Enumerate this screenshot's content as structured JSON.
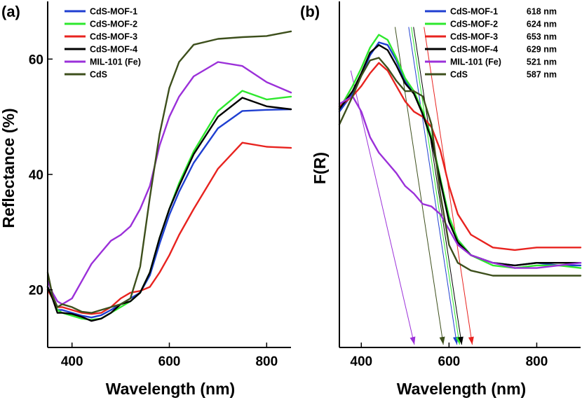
{
  "chart_data": [
    {
      "panel": "(a)",
      "type": "line",
      "xlabel": "Wavelength (nm)",
      "ylabel": "Reflectance (%)",
      "xlim": [
        350,
        850
      ],
      "ylim": [
        10,
        70
      ],
      "xticks": [
        400,
        600,
        800
      ],
      "yticks": [
        20,
        40,
        60
      ],
      "x": [
        350,
        360,
        370,
        380,
        400,
        420,
        440,
        460,
        480,
        500,
        520,
        540,
        560,
        580,
        600,
        620,
        650,
        700,
        750,
        800,
        850
      ],
      "series": [
        {
          "name": "CdS-MOF-1",
          "color": "#1f3fd1",
          "values": [
            20.5,
            18.5,
            16.5,
            16.5,
            16,
            15.5,
            15.2,
            15.6,
            16.5,
            17.5,
            18.5,
            19.5,
            22.5,
            28,
            33,
            37,
            42,
            48,
            51,
            51.2,
            51.3
          ]
        },
        {
          "name": "CdS-MOF-2",
          "color": "#2ee82e",
          "values": [
            20.5,
            18.5,
            16.5,
            16,
            15.5,
            15,
            14.8,
            15,
            16,
            17,
            18,
            19.5,
            23,
            29,
            34,
            38.5,
            44,
            51,
            54.5,
            53,
            53.5
          ]
        },
        {
          "name": "CdS-MOF-3",
          "color": "#e8231f",
          "values": [
            20,
            18.5,
            17,
            17,
            16.5,
            16,
            15.8,
            16,
            17,
            18.5,
            19.5,
            19.8,
            20.5,
            23,
            26,
            29.5,
            34,
            41,
            45.5,
            44.8,
            44.6
          ]
        },
        {
          "name": "CdS-MOF-4",
          "color": "#000000",
          "values": [
            20.5,
            18.5,
            16,
            16,
            15.8,
            15.3,
            14.6,
            15,
            16,
            17.5,
            18,
            19.5,
            23,
            29,
            34,
            38,
            43.5,
            50,
            53.3,
            51.8,
            51.3
          ]
        },
        {
          "name": "MIL-101 (Fe)",
          "color": "#9b30d9",
          "values": [
            21.5,
            19.5,
            18,
            17.5,
            18.5,
            21.5,
            24.5,
            26.5,
            28.5,
            29.5,
            31,
            34,
            38,
            45,
            50,
            53.5,
            57,
            59.5,
            58.8,
            56,
            54.2
          ]
        },
        {
          "name": "CdS",
          "color": "#3d4f1c",
          "values": [
            23,
            19,
            17,
            17.5,
            17,
            16.2,
            16,
            16.5,
            17,
            17.5,
            18.5,
            24,
            36,
            47,
            55,
            59.5,
            62.5,
            63.5,
            63.8,
            64,
            64.8
          ]
        }
      ]
    },
    {
      "panel": "(b)",
      "type": "line",
      "xlabel": "Wavelength (nm)",
      "ylabel": "F(R)",
      "xlim": [
        350,
        900
      ],
      "ylim": [
        0,
        1
      ],
      "xticks": [
        400,
        600,
        800
      ],
      "x": [
        350,
        380,
        400,
        420,
        440,
        460,
        480,
        500,
        520,
        540,
        560,
        580,
        600,
        620,
        650,
        700,
        750,
        800,
        850,
        900
      ],
      "series": [
        {
          "name": "CdS-MOF-1",
          "color": "#1f3fd1",
          "edge": "618 nm",
          "edge_nm": 618,
          "values": [
            0.62,
            0.69,
            0.76,
            0.84,
            0.89,
            0.88,
            0.82,
            0.74,
            0.69,
            0.62,
            0.52,
            0.35,
            0.2,
            0.12,
            0.06,
            0.03,
            0.02,
            0.03,
            0.02,
            0.02
          ]
        },
        {
          "name": "CdS-MOF-2",
          "color": "#2ee82e",
          "edge": "624 nm",
          "edge_nm": 624,
          "values": [
            0.63,
            0.72,
            0.79,
            0.87,
            0.92,
            0.9,
            0.83,
            0.75,
            0.7,
            0.62,
            0.52,
            0.36,
            0.21,
            0.12,
            0.06,
            0.02,
            0.01,
            0.02,
            0.02,
            0.01
          ]
        },
        {
          "name": "CdS-MOF-3",
          "color": "#e8231f",
          "edge": "653 nm",
          "edge_nm": 653,
          "values": [
            0.64,
            0.68,
            0.72,
            0.77,
            0.81,
            0.78,
            0.72,
            0.66,
            0.62,
            0.6,
            0.56,
            0.47,
            0.33,
            0.22,
            0.14,
            0.09,
            0.08,
            0.09,
            0.09,
            0.09
          ]
        },
        {
          "name": "CdS-MOF-4",
          "color": "#000000",
          "edge": "629 nm",
          "edge_nm": 629,
          "values": [
            0.63,
            0.7,
            0.77,
            0.85,
            0.88,
            0.86,
            0.8,
            0.73,
            0.69,
            0.61,
            0.51,
            0.35,
            0.19,
            0.11,
            0.06,
            0.03,
            0.02,
            0.03,
            0.03,
            0.03
          ]
        },
        {
          "name": "MIL-101 (Fe)",
          "color": "#9b30d9",
          "edge": "521 nm",
          "edge_nm": 521,
          "values": [
            0.65,
            0.68,
            0.62,
            0.52,
            0.46,
            0.42,
            0.38,
            0.33,
            0.3,
            0.26,
            0.25,
            0.22,
            0.16,
            0.1,
            0.06,
            0.03,
            0.01,
            0.01,
            0.02,
            0.03
          ]
        },
        {
          "name": "CdS",
          "color": "#3d4f1c",
          "edge": "587 nm",
          "edge_nm": 587,
          "values": [
            0.57,
            0.68,
            0.76,
            0.82,
            0.83,
            0.79,
            0.74,
            0.7,
            0.7,
            0.68,
            0.57,
            0.3,
            0.1,
            0.03,
            0.0,
            -0.02,
            -0.02,
            -0.02,
            -0.02,
            -0.02
          ]
        }
      ]
    }
  ]
}
